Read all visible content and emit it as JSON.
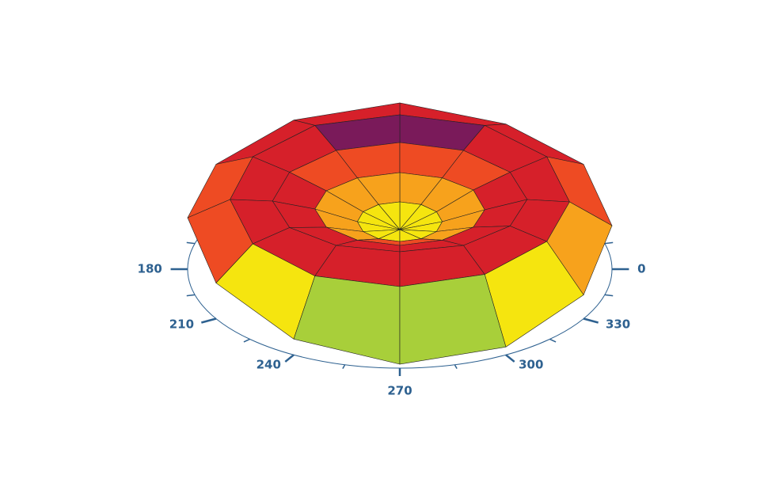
{
  "chart_data": {
    "type": "polar-surface",
    "theta": [
      0,
      30,
      60,
      90,
      120,
      150,
      180,
      210,
      240,
      270,
      300,
      330
    ],
    "r": [
      0,
      0.2,
      0.4,
      0.6,
      0.8,
      1.0
    ],
    "z": [
      [
        0.5,
        0.5,
        0.5,
        0.5,
        0.5,
        0.5,
        0.5,
        0.5,
        0.5,
        0.5,
        0.5,
        0.5
      ],
      [
        0.6,
        0.6,
        0.6,
        0.6,
        0.6,
        0.6,
        0.6,
        0.6,
        0.6,
        0.6,
        0.6,
        0.6
      ],
      [
        0.75,
        0.75,
        0.72,
        0.72,
        0.72,
        0.74,
        0.76,
        0.78,
        0.8,
        0.8,
        0.8,
        0.78
      ],
      [
        0.88,
        0.85,
        0.85,
        0.85,
        0.85,
        0.85,
        0.86,
        0.9,
        0.95,
        0.97,
        0.95,
        0.92
      ],
      [
        0.85,
        0.92,
        0.95,
        0.95,
        0.95,
        0.92,
        0.88,
        0.82,
        0.78,
        0.78,
        0.8,
        0.85
      ],
      [
        0.55,
        0.7,
        0.75,
        0.85,
        0.8,
        0.7,
        0.65,
        0.45,
        0.2,
        0.05,
        0.1,
        0.3
      ]
    ],
    "zlim": [
      0,
      1
    ],
    "colormap": [
      "#2b2f7f",
      "#14508a",
      "#0a6f5a",
      "#1fae4a",
      "#a8cf3a",
      "#f5e50f",
      "#f7a21c",
      "#ee4b23",
      "#d6202a",
      "#7a1a5a"
    ],
    "angle_labels": [
      180,
      210,
      240,
      270,
      300,
      330,
      0
    ],
    "label_color": "#2e6190"
  }
}
